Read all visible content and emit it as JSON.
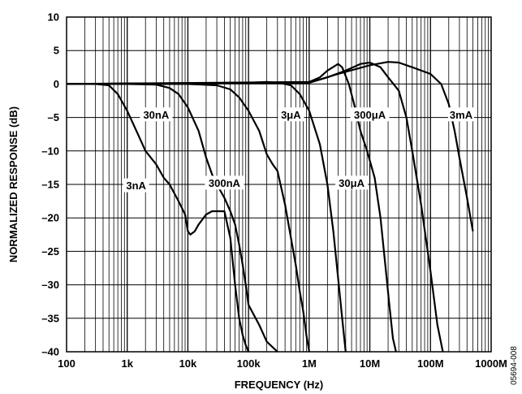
{
  "chart_data": {
    "type": "line",
    "title": "",
    "xlabel": "FREQUENCY (Hz)",
    "ylabel": "NORMALIZED RESPONSE (dB)",
    "xscale": "log",
    "xlim": [
      100,
      1000000000
    ],
    "ylim": [
      -40,
      10
    ],
    "grid": true,
    "x_tick_labels": [
      "100",
      "1k",
      "10k",
      "100k",
      "1M",
      "10M",
      "100M",
      "1000M"
    ],
    "y_ticks": [
      10,
      5,
      0,
      -5,
      -10,
      -15,
      -20,
      -25,
      -30,
      -35,
      -40
    ],
    "y_tick_labels": [
      "10",
      "5",
      "0",
      "–5",
      "–10",
      "–15",
      "–20",
      "–25",
      "–30",
      "–35",
      "–40"
    ],
    "figure_id": "05694-008",
    "series": [
      {
        "name": "3nA",
        "x": [
          100,
          300,
          500,
          700,
          1000,
          1500,
          2000,
          3000,
          4000,
          5000,
          7000,
          9000,
          10000,
          11000,
          13000,
          15000,
          20000,
          25000,
          30000,
          40000,
          50000,
          60000,
          70000,
          80000,
          90000,
          100000
        ],
        "y": [
          0,
          0,
          -0.2,
          -1.5,
          -4,
          -7.5,
          -10,
          -12,
          -14,
          -15,
          -17.5,
          -19.5,
          -22,
          -22.5,
          -22,
          -21,
          -19.5,
          -19,
          -19,
          -19,
          -23,
          -30,
          -35,
          -37.5,
          -39,
          -40
        ]
      },
      {
        "name": "30nA",
        "x": [
          100,
          1000,
          3000,
          5000,
          7000,
          10000,
          15000,
          20000,
          25000,
          30000,
          40000,
          50000,
          60000,
          70000,
          80000,
          90000,
          100000,
          150000,
          200000,
          300000
        ],
        "y": [
          0,
          0,
          -0.1,
          -0.6,
          -1.5,
          -3.5,
          -7,
          -11,
          -13.5,
          -15,
          -17,
          -19,
          -21,
          -24,
          -27,
          -30,
          -33,
          -36,
          -38.5,
          -40
        ]
      },
      {
        "name": "300nA",
        "x": [
          100,
          10000,
          30000,
          50000,
          70000,
          100000,
          150000,
          200000,
          250000,
          300000,
          400000,
          500000,
          600000,
          700000,
          800000,
          900000,
          1000000
        ],
        "y": [
          0,
          0,
          -0.2,
          -0.8,
          -2,
          -4,
          -7,
          -10.5,
          -12,
          -13,
          -18,
          -23,
          -27,
          -31,
          -34,
          -37.5,
          -40
        ]
      },
      {
        "name": "3μA",
        "x": [
          100,
          100000,
          200000,
          300000,
          400000,
          500000,
          700000,
          1000000,
          1500000,
          2000000,
          2500000,
          3000000,
          3500000,
          4000000
        ],
        "y": [
          0,
          0.2,
          0.3,
          0.2,
          0,
          -0.2,
          -1.5,
          -4,
          -9,
          -15,
          -22,
          -29,
          -35,
          -40
        ]
      },
      {
        "name": "30μA",
        "x": [
          100,
          1000000,
          1500000,
          2000000,
          3000000,
          3500000,
          4500000,
          5500000,
          7000000,
          9000000,
          12000000,
          15000000,
          18000000,
          21000000,
          24000000,
          27000000
        ],
        "y": [
          0,
          0.3,
          1,
          2,
          3,
          2.5,
          0,
          -3,
          -7,
          -10,
          -14,
          -20,
          -27,
          -33,
          -38,
          -40
        ]
      },
      {
        "name": "300μA",
        "x": [
          100,
          1000000,
          2000000,
          4000000,
          7000000,
          10000000,
          15000000,
          20000000,
          30000000,
          40000000,
          50000000,
          70000000,
          100000000,
          130000000,
          160000000
        ],
        "y": [
          0,
          0.2,
          1,
          2,
          3,
          3.2,
          2.5,
          1,
          -1,
          -5,
          -10,
          -18,
          -28,
          -36,
          -40
        ]
      },
      {
        "name": "3mA",
        "x": [
          100,
          1000000,
          3000000,
          10000000,
          20000000,
          30000000,
          50000000,
          100000000,
          150000000,
          200000000,
          250000000,
          300000000,
          400000000,
          500000000
        ],
        "y": [
          0,
          0.2,
          1.5,
          2.8,
          3.3,
          3.2,
          2.5,
          1.5,
          0,
          -3,
          -7,
          -11,
          -17,
          -22
        ]
      }
    ],
    "curve_labels": [
      "3nA",
      "30nA",
      "300nA",
      "3μA",
      "30μA",
      "300μA",
      "3mA"
    ]
  }
}
